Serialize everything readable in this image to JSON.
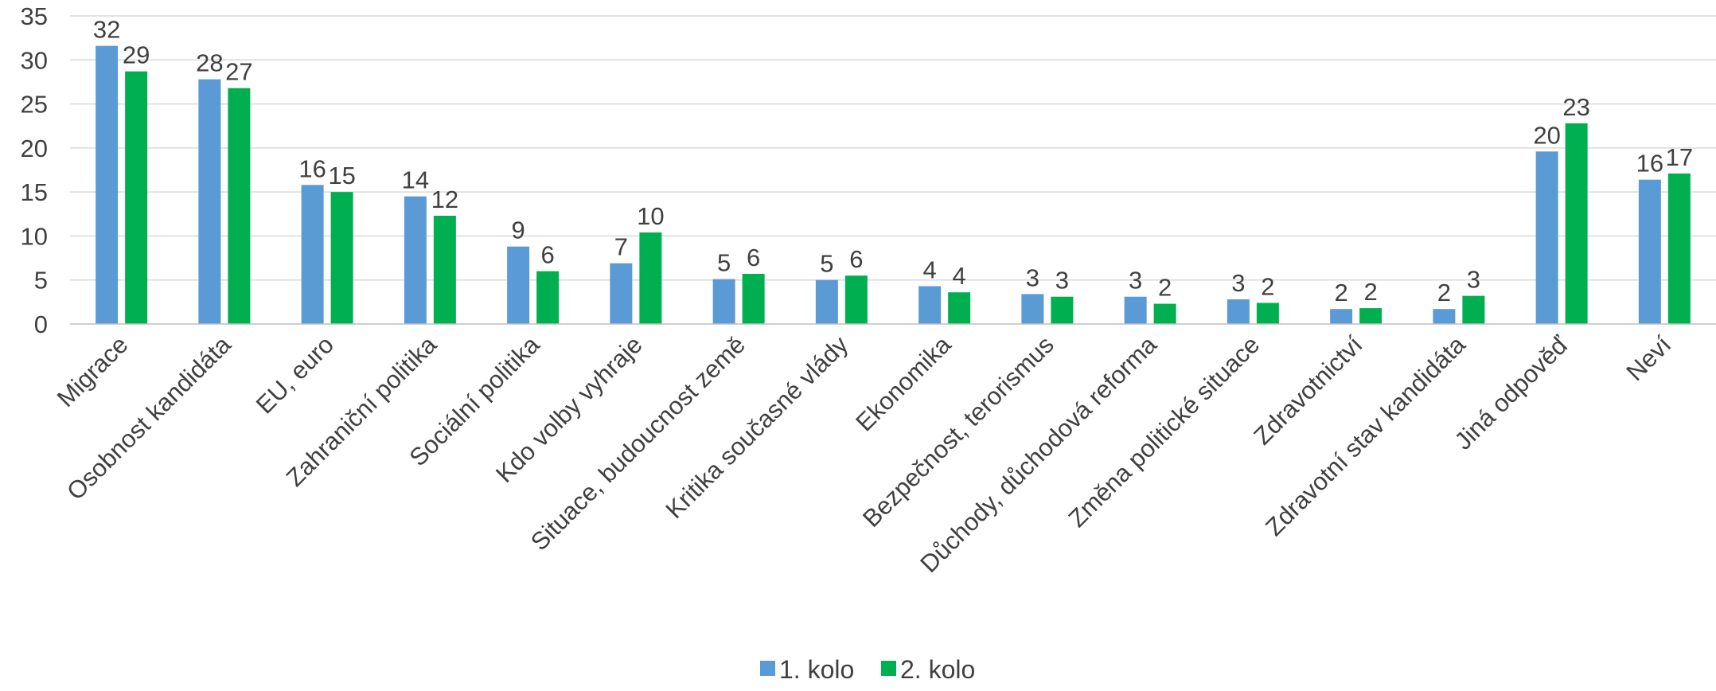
{
  "chart_data": {
    "type": "bar",
    "title": "",
    "xlabel": "",
    "ylabel": "",
    "ylim": [
      0,
      35
    ],
    "yticks": [
      0,
      5,
      10,
      15,
      20,
      25,
      30,
      35
    ],
    "grid": true,
    "legend_position": "bottom",
    "categories": [
      "Migrace",
      "Osobnost kandidáta",
      "EU, euro",
      "Zahraniční politika",
      "Sociální politika",
      "Kdo volby vyhraje",
      "Situace, budoucnost země",
      "Kritika současné vlády",
      "Ekonomika",
      "Bezpečnost, terorismus",
      "Důchody, důchodová reforma",
      "Změna politické situace",
      "Zdravotnictví",
      "Zdravotní stav kandidáta",
      "Jiná odpověď",
      "Neví"
    ],
    "series": [
      {
        "name": "1. kolo",
        "color": "#5b9bd5",
        "values": [
          31.6,
          27.8,
          15.8,
          14.5,
          8.8,
          6.9,
          5.1,
          5.0,
          4.3,
          3.4,
          3.1,
          2.8,
          1.7,
          1.7,
          19.6,
          16.4
        ],
        "labels": [
          "32",
          "28",
          "16",
          "14",
          "9",
          "7",
          "5",
          "5",
          "4",
          "3",
          "3",
          "3",
          "2",
          "2",
          "20",
          "16"
        ]
      },
      {
        "name": "2. kolo",
        "color": "#00b050",
        "values": [
          28.7,
          26.8,
          15.0,
          12.3,
          6.0,
          10.4,
          5.7,
          5.5,
          3.6,
          3.1,
          2.3,
          2.4,
          1.8,
          3.2,
          22.8,
          17.1
        ],
        "labels": [
          "29",
          "27",
          "15",
          "12",
          "6",
          "10",
          "6",
          "6",
          "4",
          "3",
          "2",
          "2",
          "2",
          "3",
          "23",
          "17"
        ]
      }
    ]
  }
}
